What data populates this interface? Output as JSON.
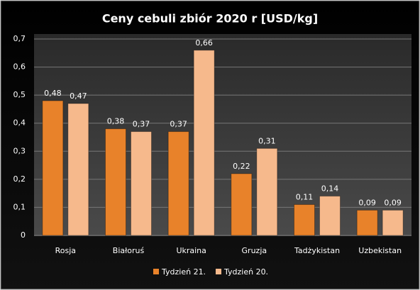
{
  "chart_data": {
    "type": "bar",
    "title": "Ceny cebuli zbiór 2020 r [USD/kg]",
    "categories": [
      "Rosja",
      "Białoruś",
      "Ukraina",
      "Gruzja",
      "Tadżykistan",
      "Uzbekistan"
    ],
    "series": [
      {
        "name": "Tydzień 21.",
        "color": "#e8822a",
        "values": [
          0.48,
          0.38,
          0.37,
          0.22,
          0.11,
          0.09
        ],
        "value_labels": [
          "0,48",
          "0,38",
          "0,37",
          "0,22",
          "0,11",
          "0,09"
        ]
      },
      {
        "name": "Tydzień 20.",
        "color": "#f6b98c",
        "values": [
          0.47,
          0.37,
          0.66,
          0.31,
          0.14,
          0.09
        ],
        "value_labels": [
          "0,47",
          "0,37",
          "0,66",
          "0,31",
          "0,14",
          "0,09"
        ]
      }
    ],
    "ylim": [
      0,
      0.7
    ],
    "yticks": [
      0,
      {
        "value": 0.1,
        "label": "0,1"
      },
      {
        "value": 0.2,
        "label": "0,2"
      },
      {
        "value": 0.3,
        "label": "0,3"
      },
      {
        "value": 0.4,
        "label": "0,4"
      },
      {
        "value": 0.5,
        "label": "0,5"
      },
      {
        "value": 0.6,
        "label": "0,6"
      },
      {
        "value": 0.7,
        "label": "0,7"
      }
    ],
    "grid": true,
    "legend": "bottom"
  }
}
